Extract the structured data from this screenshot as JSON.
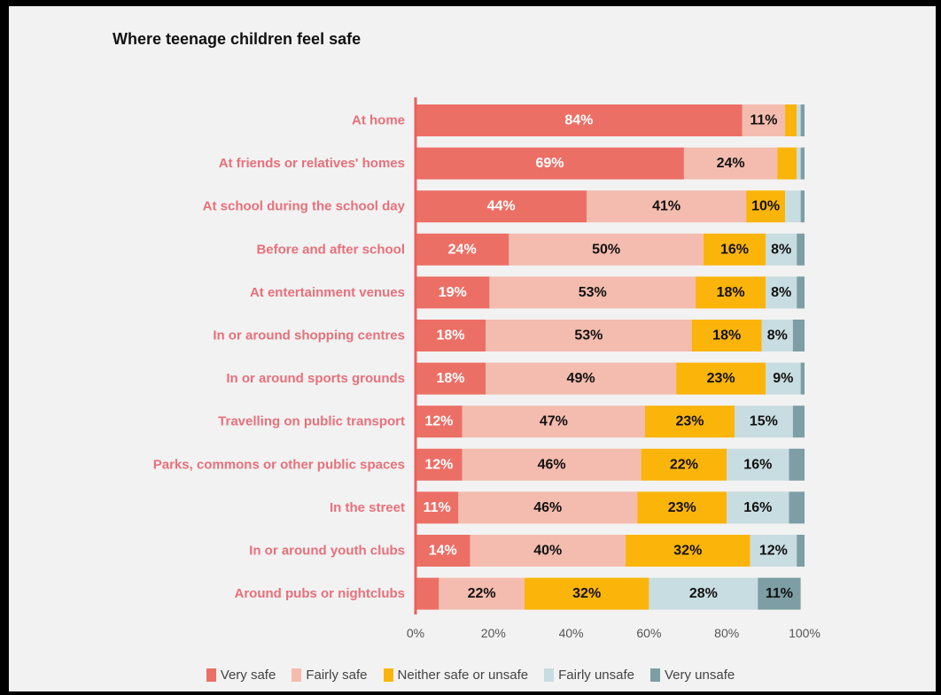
{
  "chart_data": {
    "type": "bar",
    "orientation": "horizontal",
    "stacked": true,
    "title": "Where teenage children feel safe",
    "xlabel": "",
    "ylabel": "",
    "xlim": [
      0,
      100
    ],
    "x_ticks": [
      "0%",
      "20%",
      "40%",
      "60%",
      "80%",
      "100%"
    ],
    "legend_position": "bottom",
    "grid": false,
    "categories": [
      "At home",
      "At friends or relatives' homes",
      "At school during the school day",
      "Before and after school",
      "At entertainment venues",
      "In or around shopping centres",
      "In or around sports grounds",
      "Travelling on public transport",
      "Parks, commons or other public spaces",
      "In the street",
      "In or around youth clubs",
      "Around pubs or nightclubs"
    ],
    "series": [
      {
        "name": "Very safe",
        "color": "#ec6f66",
        "label_color": "#ffffff",
        "values": [
          84,
          69,
          44,
          24,
          19,
          18,
          18,
          12,
          12,
          11,
          14,
          6
        ],
        "labels": [
          "84%",
          "69%",
          "44%",
          "24%",
          "19%",
          "18%",
          "18%",
          "12%",
          "12%",
          "11%",
          "14%",
          ""
        ]
      },
      {
        "name": "Fairly safe",
        "color": "#f4bcae",
        "label_color": "#111111",
        "values": [
          11,
          24,
          41,
          50,
          53,
          53,
          49,
          47,
          46,
          46,
          40,
          22
        ],
        "labels": [
          "11%",
          "24%",
          "41%",
          "50%",
          "53%",
          "53%",
          "49%",
          "47%",
          "46%",
          "46%",
          "40%",
          "22%"
        ]
      },
      {
        "name": "Neither safe or unsafe",
        "color": "#fbb40a",
        "label_color": "#111111",
        "values": [
          3,
          5,
          10,
          16,
          18,
          18,
          23,
          23,
          22,
          23,
          32,
          32
        ],
        "labels": [
          "",
          "",
          "10%",
          "16%",
          "18%",
          "18%",
          "23%",
          "23%",
          "22%",
          "23%",
          "32%",
          "32%"
        ]
      },
      {
        "name": "Fairly unsafe",
        "color": "#c8dde1",
        "label_color": "#111111",
        "values": [
          1,
          1,
          4,
          8,
          8,
          8,
          9,
          15,
          16,
          16,
          12,
          28
        ],
        "labels": [
          "",
          "",
          "",
          "8%",
          "8%",
          "8%",
          "9%",
          "15%",
          "16%",
          "16%",
          "12%",
          "28%"
        ]
      },
      {
        "name": "Very unsafe",
        "color": "#7c9ea4",
        "label_color": "#111111",
        "values": [
          1,
          1,
          1,
          2,
          2,
          3,
          1,
          3,
          4,
          4,
          2,
          11
        ],
        "labels": [
          "",
          "",
          "",
          "",
          "",
          "",
          "",
          "",
          "",
          "",
          "",
          "11%"
        ]
      }
    ]
  }
}
